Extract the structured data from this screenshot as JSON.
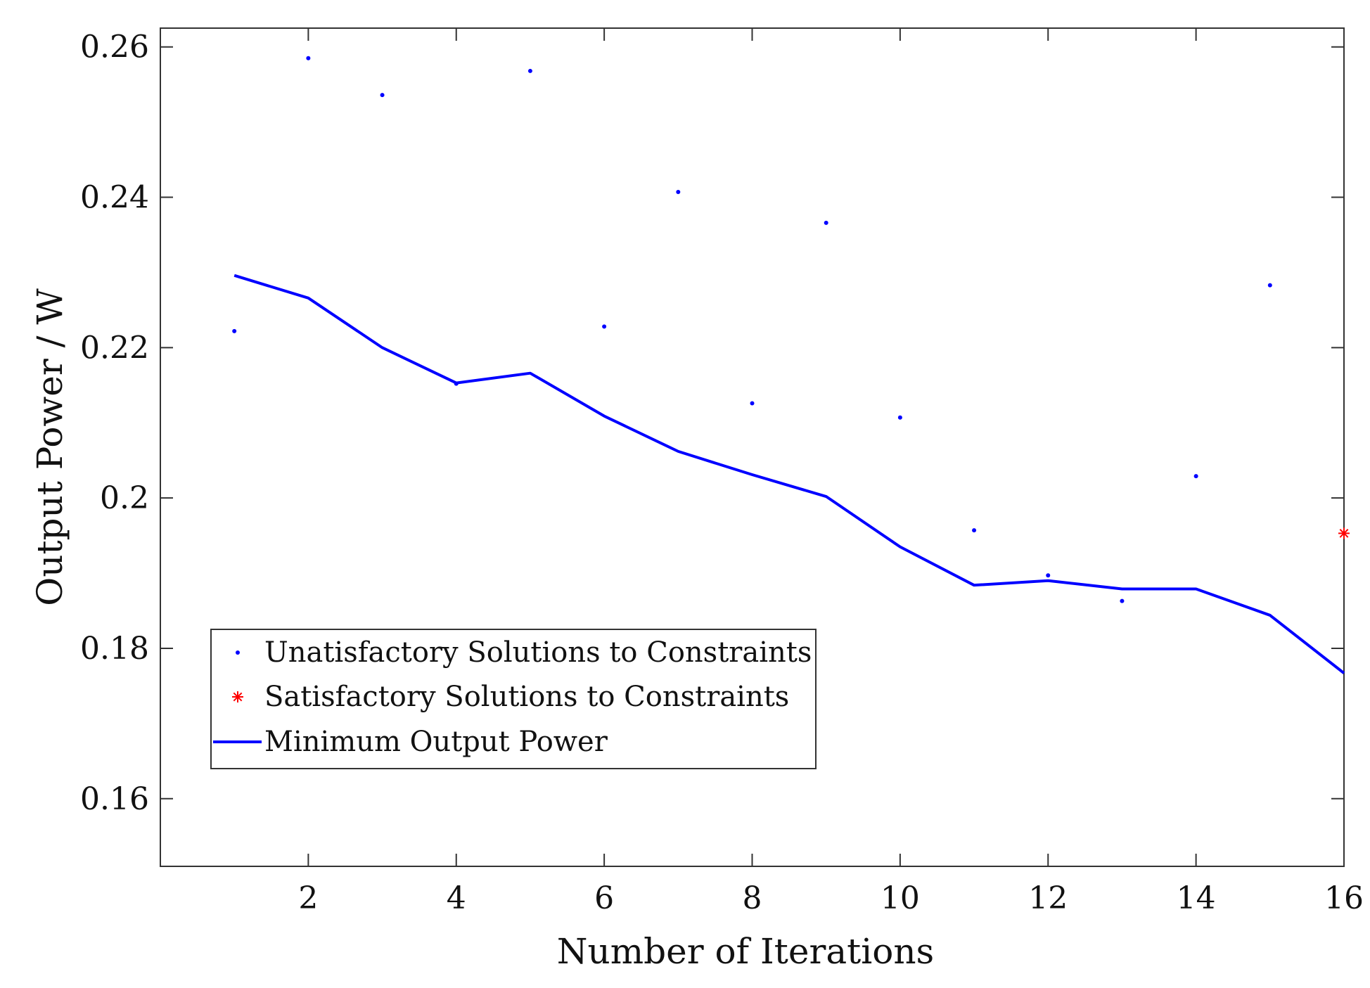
{
  "chart_data": {
    "type": "scatter",
    "title": "",
    "xlabel": "Number of Iterations",
    "ylabel": "Output Power / W",
    "xlim": [
      0,
      16
    ],
    "ylim": [
      0.151,
      0.2625
    ],
    "xticks": [
      2,
      4,
      6,
      8,
      10,
      12,
      14,
      16
    ],
    "xtick_labels": [
      "2",
      "4",
      "6",
      "8",
      "10",
      "12",
      "14",
      "16"
    ],
    "yticks": [
      0.16,
      0.18,
      0.2,
      0.22,
      0.24,
      0.26
    ],
    "ytick_labels": [
      "0.16",
      "0.18",
      "0.2",
      "0.22",
      "0.24",
      "0.26"
    ],
    "grid": false,
    "legend_position": "bottom-left",
    "series": [
      {
        "name": "Unatisfactory Solutions to Constraints",
        "kind": "scatter",
        "marker": "dot",
        "color": "#0000ff",
        "x": [
          1,
          2,
          3,
          4,
          5,
          6,
          7,
          8,
          9,
          10,
          11,
          12,
          13,
          14,
          15
        ],
        "y": [
          0.2222,
          0.2585,
          0.2536,
          0.2152,
          0.2568,
          0.2228,
          0.2407,
          0.2126,
          0.2366,
          0.2107,
          0.1957,
          0.1897,
          0.1863,
          0.2029,
          0.2283
        ]
      },
      {
        "name": "Satisfactory Solutions to Constraints",
        "kind": "scatter",
        "marker": "asterisk",
        "color": "#ff0000",
        "x": [
          16
        ],
        "y": [
          0.1953
        ]
      },
      {
        "name": "Minimum Output Power",
        "kind": "line",
        "color": "#0000ff",
        "x": [
          1,
          2,
          3,
          4,
          5,
          6,
          7,
          8,
          9,
          10,
          11,
          12,
          13,
          14,
          15,
          16
        ],
        "y": [
          0.2296,
          0.2266,
          0.22,
          0.2153,
          0.2166,
          0.2109,
          0.2062,
          0.2031,
          0.2002,
          0.1935,
          0.1884,
          0.189,
          0.1879,
          0.1879,
          0.1844,
          0.1767
        ]
      }
    ]
  }
}
